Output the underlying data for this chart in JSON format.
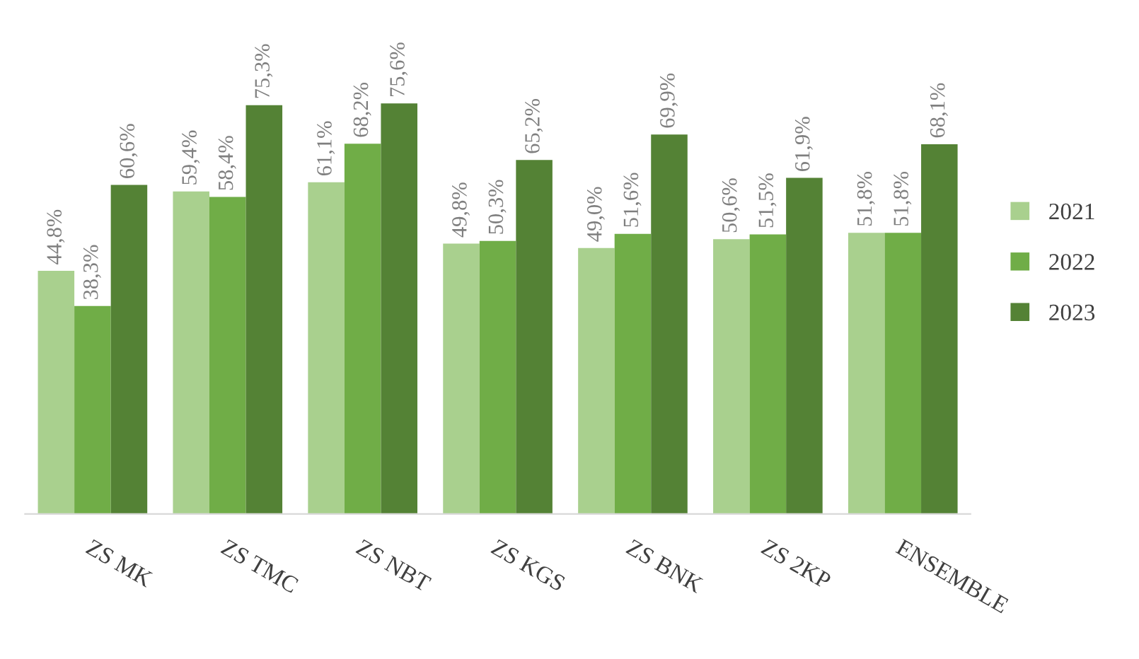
{
  "chart_data": {
    "type": "bar",
    "categories": [
      "ZS MK",
      "ZS TMC",
      "ZS NBT",
      "ZS KGS",
      "ZS BNK",
      "ZS 2KP",
      "ENSEMBLE"
    ],
    "series": [
      {
        "name": "2021",
        "color": "#a9d08e",
        "values": [
          44.8,
          59.4,
          61.1,
          49.8,
          49.0,
          50.6,
          51.8
        ],
        "value_labels": [
          "44,8%",
          "59,4%",
          "61,1%",
          "49,8%",
          "49,0%",
          "50,6%",
          "51,8%"
        ]
      },
      {
        "name": "2022",
        "color": "#70ad47",
        "values": [
          38.3,
          58.4,
          68.2,
          50.3,
          51.6,
          51.5,
          51.8
        ],
        "value_labels": [
          "38,3%",
          "58,4%",
          "68,2%",
          "50,3%",
          "51,6%",
          "51,5%",
          "51,8%"
        ]
      },
      {
        "name": "2023",
        "color": "#548235",
        "values": [
          60.6,
          75.3,
          75.6,
          65.2,
          69.9,
          61.9,
          68.1
        ],
        "value_labels": [
          "60,6%",
          "75,3%",
          "75,6%",
          "65,2%",
          "69,9%",
          "61,9%",
          "68,1%"
        ]
      }
    ],
    "legend": "right",
    "grid": false,
    "tick_labels": "x"
  }
}
